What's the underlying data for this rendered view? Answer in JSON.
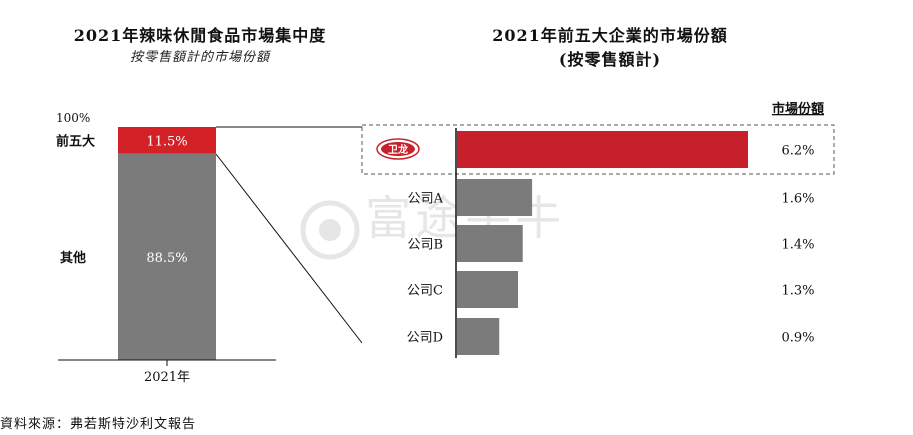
{
  "left_chart": {
    "title": "2021年辣味休閒食品市場集中度",
    "subtitle": "按零售額計的市場份額",
    "axis_top_label": "100%",
    "x_label": "2021年",
    "segments": [
      {
        "label": "前五大",
        "value_label": "11.5%",
        "value": 11.5,
        "color": "#d42027"
      },
      {
        "label": "其他",
        "value_label": "88.5%",
        "value": 88.5,
        "color": "#7b7b7b"
      }
    ]
  },
  "right_chart": {
    "title_line1": "2021年前五大企業的市場份額",
    "title_line2": "(按零售額計)",
    "column_header": "市場份額",
    "logo_text": "卫龙"
  },
  "watermark": {
    "text": "富途牛牛"
  },
  "footer": {
    "source": "資料來源：弗若斯特沙利文報告"
  },
  "chart_data": [
    {
      "type": "bar",
      "title": "2021年辣味休閒食品市場集中度",
      "subtitle": "按零售額計的市場份額",
      "categories": [
        "2021年"
      ],
      "series": [
        {
          "name": "前五大",
          "values": [
            11.5
          ]
        },
        {
          "name": "其他",
          "values": [
            88.5
          ]
        }
      ],
      "stacked": true,
      "ylim": [
        0,
        100
      ],
      "unit": "%"
    },
    {
      "type": "bar",
      "orientation": "horizontal",
      "title": "2021年前五大企業的市場份額",
      "subtitle": "(按零售額計)",
      "column_header": "市場份額",
      "categories": [
        "卫龙",
        "公司A",
        "公司B",
        "公司C",
        "公司D"
      ],
      "values": [
        6.2,
        1.6,
        1.4,
        1.3,
        0.9
      ],
      "value_labels": [
        "6.2%",
        "1.6%",
        "1.4%",
        "1.3%",
        "0.9%"
      ],
      "highlight": "卫龙",
      "colors": {
        "highlight": "#c8202a",
        "other": "#7b7b7b"
      },
      "unit": "%"
    }
  ]
}
